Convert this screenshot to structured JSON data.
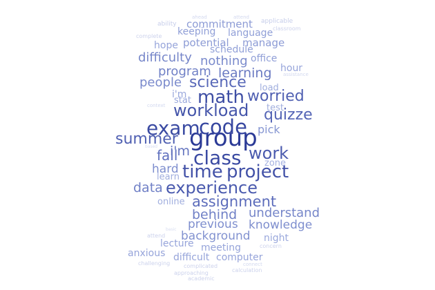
{
  "palette": {
    "background": "#ffffff",
    "base_hue": "indigo-blue"
  },
  "words": [
    {
      "text": "group",
      "weight": 1.0,
      "color": "#2b3a96"
    },
    {
      "text": "code",
      "weight": 0.9,
      "color": "#3646a0"
    },
    {
      "text": "exam",
      "weight": 0.85,
      "color": "#3a4aa2"
    },
    {
      "text": "class",
      "weight": 0.85,
      "color": "#3a4aa2"
    },
    {
      "text": "math",
      "weight": 0.8,
      "color": "#3e4ea4"
    },
    {
      "text": "time",
      "weight": 0.8,
      "color": "#4251a7"
    },
    {
      "text": "project",
      "weight": 0.8,
      "color": "#4251a7"
    },
    {
      "text": "workload",
      "weight": 0.78,
      "color": "#4555aa"
    },
    {
      "text": "experience",
      "weight": 0.75,
      "color": "#4a5aae"
    },
    {
      "text": "work",
      "weight": 0.72,
      "color": "#4a5aae"
    },
    {
      "text": "summer",
      "weight": 0.7,
      "color": "#5060b2"
    },
    {
      "text": "worried",
      "weight": 0.7,
      "color": "#5060b2"
    },
    {
      "text": "quizze",
      "weight": 0.7,
      "color": "#5464b5"
    },
    {
      "text": "science",
      "weight": 0.65,
      "color": "#5868b8"
    },
    {
      "text": "assignment",
      "weight": 0.62,
      "color": "#5c6cbb"
    },
    {
      "text": "fall",
      "weight": 0.6,
      "color": "#6070be"
    },
    {
      "text": "i'm",
      "weight": 0.55,
      "color": "#6676c0"
    },
    {
      "text": "learning",
      "weight": 0.55,
      "color": "#6a7ac2"
    },
    {
      "text": "program",
      "weight": 0.5,
      "color": "#7080c6"
    },
    {
      "text": "behind",
      "weight": 0.5,
      "color": "#7080c6"
    },
    {
      "text": "data",
      "weight": 0.48,
      "color": "#7080c6"
    },
    {
      "text": "understand",
      "weight": 0.45,
      "color": "#7686c9"
    },
    {
      "text": "difficulty",
      "weight": 0.45,
      "color": "#7686c9"
    },
    {
      "text": "people",
      "weight": 0.45,
      "color": "#7a8acc"
    },
    {
      "text": "nothing",
      "weight": 0.45,
      "color": "#7a8acc"
    },
    {
      "text": "hard",
      "weight": 0.42,
      "color": "#7e8ece"
    },
    {
      "text": "previous",
      "weight": 0.42,
      "color": "#7e8ece"
    },
    {
      "text": "knowledge",
      "weight": 0.42,
      "color": "#7e8ece"
    },
    {
      "text": "background",
      "weight": 0.42,
      "color": "#8292d0"
    },
    {
      "text": "pick",
      "weight": 0.38,
      "color": "#8696d2"
    },
    {
      "text": "potential",
      "weight": 0.35,
      "color": "#8c9bd5"
    },
    {
      "text": "manage",
      "weight": 0.35,
      "color": "#8c9bd5"
    },
    {
      "text": "language",
      "weight": 0.33,
      "color": "#909fd7"
    },
    {
      "text": "keeping",
      "weight": 0.33,
      "color": "#909fd7"
    },
    {
      "text": "commitment",
      "weight": 0.35,
      "color": "#8c9bd5"
    },
    {
      "text": "schedule",
      "weight": 0.33,
      "color": "#909fd7"
    },
    {
      "text": "office",
      "weight": 0.33,
      "color": "#909fd7"
    },
    {
      "text": "hope",
      "weight": 0.3,
      "color": "#96a4da"
    },
    {
      "text": "hour",
      "weight": 0.32,
      "color": "#96a4da"
    },
    {
      "text": "i'm",
      "weight": 0.3,
      "color": "#9aa8dc"
    },
    {
      "text": "stat",
      "weight": 0.3,
      "color": "#9aa8dc"
    },
    {
      "text": "load",
      "weight": 0.28,
      "color": "#a0aede"
    },
    {
      "text": "test",
      "weight": 0.28,
      "color": "#a0aede"
    },
    {
      "text": "zone",
      "weight": 0.28,
      "color": "#a4b1e0"
    },
    {
      "text": "learn",
      "weight": 0.3,
      "color": "#a0aede"
    },
    {
      "text": "online",
      "weight": 0.3,
      "color": "#a0aede"
    },
    {
      "text": "night",
      "weight": 0.32,
      "color": "#9aa8dc"
    },
    {
      "text": "lecture",
      "weight": 0.32,
      "color": "#96a4da"
    },
    {
      "text": "meeting",
      "weight": 0.32,
      "color": "#96a4da"
    },
    {
      "text": "anxious",
      "weight": 0.32,
      "color": "#96a4da"
    },
    {
      "text": "difficult",
      "weight": 0.32,
      "color": "#96a4da"
    },
    {
      "text": "computer",
      "weight": 0.32,
      "color": "#96a4da"
    },
    {
      "text": "ability",
      "weight": 0.18,
      "color": "#c6cdea"
    },
    {
      "text": "applicable",
      "weight": 0.18,
      "color": "#c6cdea"
    },
    {
      "text": "classroom",
      "weight": 0.16,
      "color": "#ccd2ec"
    },
    {
      "text": "complete",
      "weight": 0.16,
      "color": "#ccd2ec"
    },
    {
      "text": "concern",
      "weight": 0.16,
      "color": "#ccd2ec"
    },
    {
      "text": "attend",
      "weight": 0.16,
      "color": "#ccd2ec"
    },
    {
      "text": "challenging",
      "weight": 0.16,
      "color": "#ccd2ec"
    },
    {
      "text": "complicated",
      "weight": 0.16,
      "color": "#ccd2ec"
    },
    {
      "text": "calculation",
      "weight": 0.16,
      "color": "#ccd2ec"
    },
    {
      "text": "approaching",
      "weight": 0.16,
      "color": "#ccd2ec"
    },
    {
      "text": "academic",
      "weight": 0.16,
      "color": "#ccd2ec"
    },
    {
      "text": "connect",
      "weight": 0.14,
      "color": "#d2d8ef"
    },
    {
      "text": "context",
      "weight": 0.14,
      "color": "#d2d8ef"
    },
    {
      "text": "ahead",
      "weight": 0.14,
      "color": "#d2d8ef"
    },
    {
      "text": "attend",
      "weight": 0.14,
      "color": "#d2d8ef"
    },
    {
      "text": "assistance",
      "weight": 0.14,
      "color": "#d2d8ef"
    },
    {
      "text": "based",
      "weight": 0.12,
      "color": "#d8ddf1"
    },
    {
      "text": "basic",
      "weight": 0.12,
      "color": "#d8ddf1"
    }
  ]
}
